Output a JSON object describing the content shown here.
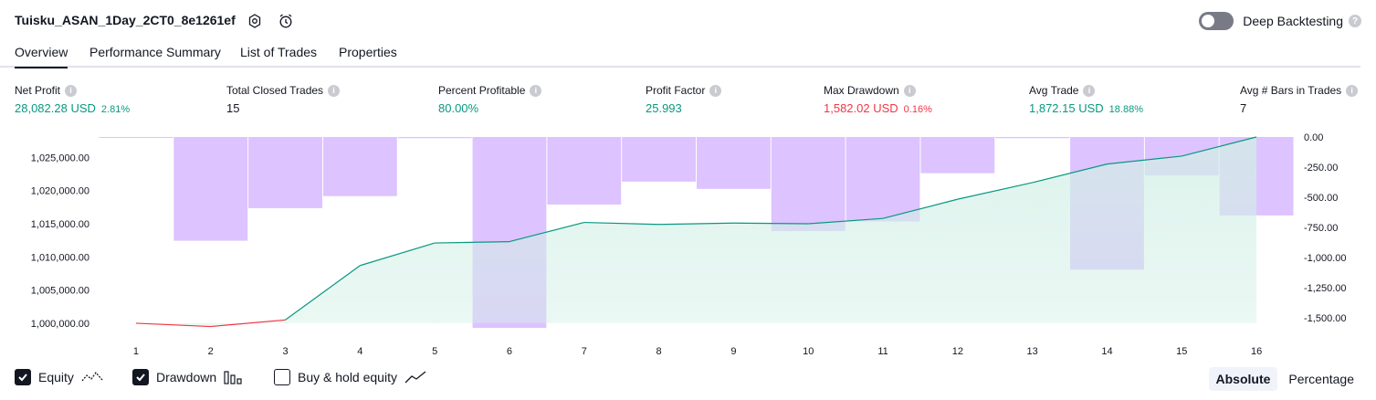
{
  "header": {
    "title": "Tuisku_ASAN_1Day_2CT0_8e1261ef",
    "deep_backtesting_label": "Deep Backtesting",
    "deep_backtesting_enabled": false,
    "help_symbol": "?"
  },
  "tabs": [
    {
      "label": "Overview",
      "active": true
    },
    {
      "label": "Performance Summary",
      "active": false
    },
    {
      "label": "List of Trades",
      "active": false
    },
    {
      "label": "Properties",
      "active": false
    }
  ],
  "metrics": [
    {
      "label": "Net Profit",
      "value": "28,082.28 USD",
      "pct": "2.81%",
      "tone": "pos"
    },
    {
      "label": "Total Closed Trades",
      "value": "15",
      "pct": "",
      "tone": "neu"
    },
    {
      "label": "Percent Profitable",
      "value": "80.00%",
      "pct": "",
      "tone": "pos"
    },
    {
      "label": "Profit Factor",
      "value": "25.993",
      "pct": "",
      "tone": "pos"
    },
    {
      "label": "Max Drawdown",
      "value": "1,582.02 USD",
      "pct": "0.16%",
      "tone": "neg"
    },
    {
      "label": "Avg Trade",
      "value": "1,872.15 USD",
      "pct": "18.88%",
      "tone": "pos"
    },
    {
      "label": "Avg # Bars in Trades",
      "value": "7",
      "pct": "",
      "tone": "neu"
    }
  ],
  "chart_data": {
    "type": "line",
    "x": [
      1,
      2,
      3,
      4,
      5,
      6,
      7,
      8,
      9,
      10,
      11,
      12,
      13,
      14,
      15,
      16
    ],
    "left_axis": {
      "ticks": [
        1000000,
        1005000,
        1010000,
        1015000,
        1020000,
        1025000
      ],
      "tick_labels": [
        "1,000,000.00",
        "1,005,000.00",
        "1,010,000.00",
        "1,015,000.00",
        "1,020,000.00",
        "1,025,000.00"
      ],
      "range": [
        999300,
        1028082
      ]
    },
    "right_axis": {
      "ticks": [
        0,
        -250,
        -500,
        -750,
        -1000,
        -1250,
        -1500
      ],
      "tick_labels": [
        "0.00",
        "-250.00",
        "-500.00",
        "-750.00",
        "-1,000.00",
        "-1,250.00",
        "-1,500.00"
      ],
      "range": [
        -1582,
        0
      ]
    },
    "series": [
      {
        "kind": "equity",
        "values": [
          1000000,
          999500,
          1000500,
          1008700,
          1012100,
          1012300,
          1015200,
          1014900,
          1015100,
          1015000,
          1015800,
          1018700,
          1021200,
          1024000,
          1025200,
          1028082
        ],
        "color_up": "#089981",
        "color_down": "#f23645"
      },
      {
        "kind": "drawdown",
        "values": [
          -5,
          -860,
          -590,
          -490,
          -10,
          -1582,
          -560,
          -370,
          -430,
          -780,
          -700,
          -300,
          -10,
          -1100,
          -320,
          -650
        ],
        "color": "#d7b9ff"
      }
    ],
    "grid": false
  },
  "footer": {
    "checkboxes": [
      {
        "label": "Equity",
        "checked": true,
        "icon": "equity-line-icon"
      },
      {
        "label": "Drawdown",
        "checked": true,
        "icon": "drawdown-bars-icon"
      },
      {
        "label": "Buy & hold equity",
        "checked": false,
        "icon": "buy-hold-line-icon"
      }
    ],
    "modes": [
      {
        "label": "Absolute",
        "active": true
      },
      {
        "label": "Percentage",
        "active": false
      }
    ]
  },
  "colors": {
    "positive": "#089981",
    "negative": "#f23645",
    "drawdown_fill": "#d7b9ff",
    "equity_fill": "#d2efe6"
  }
}
